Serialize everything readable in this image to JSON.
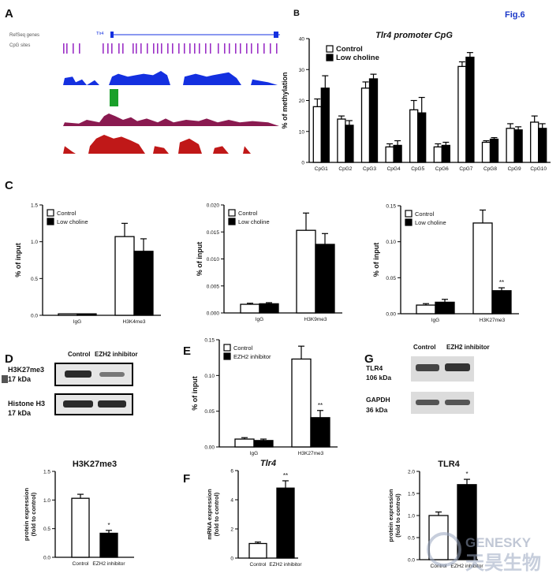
{
  "figure_label": "Fig.6",
  "panel_labels": {
    "A": "A",
    "B": "B",
    "C": "C",
    "D": "D",
    "E": "E",
    "F": "F",
    "G": "G"
  },
  "panel_a": {
    "tracks": [
      "RefSeq genes",
      "CpG sites"
    ],
    "gene_label": "Tlr4",
    "colors": {
      "cpg": "#9b30c6",
      "blue": "#1430e0",
      "green": "#1aa02a",
      "maroon": "#8a1a50",
      "red": "#c01818"
    }
  },
  "legends": {
    "control": "Control",
    "low_choline": "Low choline",
    "ezh2": "EZH2 inhibitor"
  },
  "colors": {
    "control": "#ffffff",
    "treated": "#000000"
  },
  "watermark": {
    "line1": "GENESKY",
    "line2": "天昊生物"
  },
  "chart_data": [
    {
      "id": "B",
      "type": "bar",
      "title": "Tlr4 promoter CpG",
      "ylabel": "% of methylation",
      "ylim": [
        0,
        40
      ],
      "yticks": [
        "0",
        "10",
        "20",
        "30",
        "40"
      ],
      "categories": [
        "CpG1",
        "CpG2",
        "CpG3",
        "CpG4",
        "CpG5",
        "CpG6",
        "CpG7",
        "CpG8",
        "CpG9",
        "CpG10"
      ],
      "series": [
        {
          "name": "Control",
          "values": [
            18,
            14,
            24,
            5,
            17,
            5,
            31,
            6.5,
            11,
            13
          ],
          "err": [
            2.5,
            1,
            2,
            1,
            3,
            1,
            1.5,
            0.5,
            1.5,
            2
          ]
        },
        {
          "name": "Low choline",
          "values": [
            24,
            12,
            27,
            5.5,
            16,
            5.5,
            34,
            7.5,
            10.5,
            11
          ],
          "err": [
            4,
            1.5,
            1.5,
            1.5,
            5,
            1,
            1.5,
            0.5,
            1,
            1.5
          ]
        }
      ],
      "legend_position": "top-left"
    },
    {
      "id": "C1",
      "type": "bar",
      "ylabel": "% of input",
      "ylim": [
        0,
        1.5
      ],
      "yticks": [
        "0.0",
        "0.5",
        "1.0",
        "1.5"
      ],
      "categories": [
        "IgG",
        "H3K4me3"
      ],
      "series": [
        {
          "name": "Control",
          "values": [
            0.02,
            1.07
          ],
          "err": [
            0,
            0.18
          ]
        },
        {
          "name": "Low choline",
          "values": [
            0.02,
            0.87
          ],
          "err": [
            0,
            0.17
          ]
        }
      ],
      "legend_position": "top-left"
    },
    {
      "id": "C2",
      "type": "bar",
      "ylabel": "% of input",
      "ylim": [
        0,
        0.02
      ],
      "yticks": [
        "0.000",
        "0.005",
        "0.010",
        "0.015",
        "0.020"
      ],
      "categories": [
        "IgG",
        "H3K9me3"
      ],
      "series": [
        {
          "name": "Control",
          "values": [
            0.0016,
            0.0153
          ],
          "err": [
            0.0002,
            0.0032
          ]
        },
        {
          "name": "Low choline",
          "values": [
            0.0017,
            0.0127
          ],
          "err": [
            0.0002,
            0.002
          ]
        }
      ],
      "legend_position": "top-left"
    },
    {
      "id": "C3",
      "type": "bar",
      "ylabel": "% of input",
      "ylim": [
        0,
        0.15
      ],
      "yticks": [
        "0.00",
        "0.05",
        "0.10",
        "0.15"
      ],
      "categories": [
        "IgG",
        "H3K27me3"
      ],
      "series": [
        {
          "name": "Control",
          "values": [
            0.012,
            0.126
          ],
          "err": [
            0.002,
            0.018
          ]
        },
        {
          "name": "Low choline",
          "values": [
            0.016,
            0.032
          ],
          "err": [
            0.004,
            0.004
          ]
        }
      ],
      "sig": [
        "",
        "**"
      ],
      "legend_position": "top-left"
    },
    {
      "id": "D2",
      "type": "bar",
      "title": "H3K27me3",
      "ylabel": "protein expression\n(fold to control)",
      "ylim": [
        0,
        1.5
      ],
      "yticks": [
        "0.0",
        "0.5",
        "1.0",
        "1.5"
      ],
      "categories": [
        "Control",
        "EZH2 inhibitor"
      ],
      "values": [
        1.03,
        0.42
      ],
      "err": [
        0.07,
        0.05
      ],
      "sig": [
        "",
        "*"
      ]
    },
    {
      "id": "E",
      "type": "bar",
      "ylabel": "% of input",
      "ylim": [
        0,
        0.15
      ],
      "yticks": [
        "0.00",
        "0.05",
        "0.10",
        "0.15"
      ],
      "categories": [
        "IgG",
        "H3K27me3"
      ],
      "series": [
        {
          "name": "Control",
          "values": [
            0.011,
            0.123
          ],
          "err": [
            0.002,
            0.018
          ]
        },
        {
          "name": "EZH2 inhibitor",
          "values": [
            0.009,
            0.041
          ],
          "err": [
            0.002,
            0.01
          ]
        }
      ],
      "sig": [
        "",
        "**"
      ],
      "legend_position": "top-left"
    },
    {
      "id": "F",
      "type": "bar",
      "title": "Tlr4",
      "ylabel": "mRNA expression\n(fold to control)",
      "ylim": [
        0,
        6
      ],
      "yticks": [
        "0",
        "2",
        "4",
        "6"
      ],
      "categories": [
        "Control",
        "EZH2 inhibitor"
      ],
      "values": [
        1.0,
        4.8
      ],
      "err": [
        0.1,
        0.5
      ],
      "sig": [
        "",
        "**"
      ]
    },
    {
      "id": "G2",
      "type": "bar",
      "title": "TLR4",
      "ylabel": "protein expression\n(fold to control)",
      "ylim": [
        0,
        2.0
      ],
      "yticks": [
        "0.0",
        "0.5",
        "1.0",
        "1.5",
        "2.0"
      ],
      "categories": [
        "Control",
        "EZH2 inhibitor"
      ],
      "values": [
        1.0,
        1.7
      ],
      "err": [
        0.08,
        0.12
      ],
      "sig": [
        "",
        "*"
      ]
    }
  ],
  "blots": {
    "D": {
      "columns": [
        "Control",
        "EZH2 inhibitor"
      ],
      "rows": [
        {
          "label": "H3K27me3",
          "kda": "17 kDa"
        },
        {
          "label": "Histone H3",
          "kda": "17 kDa"
        }
      ]
    },
    "G": {
      "columns": [
        "Control",
        "EZH2 inhibitor"
      ],
      "rows": [
        {
          "label": "TLR4",
          "kda": "106 kDa"
        },
        {
          "label": "GAPDH",
          "kda": "36 kDa"
        }
      ]
    }
  }
}
